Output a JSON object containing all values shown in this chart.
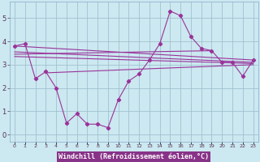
{
  "xlabel": "Windchill (Refroidissement éolien,°C)",
  "x": [
    0,
    1,
    2,
    3,
    4,
    5,
    6,
    7,
    8,
    9,
    10,
    11,
    12,
    13,
    14,
    15,
    16,
    17,
    18,
    19,
    20,
    21,
    22,
    23
  ],
  "line_main": [
    3.8,
    3.9,
    2.4,
    2.7,
    2.0,
    0.5,
    0.9,
    0.45,
    0.45,
    0.3,
    1.5,
    2.3,
    2.6,
    3.2,
    3.9,
    5.3,
    5.1,
    4.2,
    3.7,
    3.6,
    3.1,
    3.1,
    2.5,
    3.2
  ],
  "straight_lines": [
    {
      "x": [
        0,
        23
      ],
      "y": [
        3.8,
        3.2
      ]
    },
    {
      "x": [
        0,
        23
      ],
      "y": [
        3.55,
        3.1
      ]
    },
    {
      "x": [
        0,
        23
      ],
      "y": [
        3.35,
        3.05
      ]
    },
    {
      "x": [
        3,
        23
      ],
      "y": [
        2.65,
        3.0
      ]
    },
    {
      "x": [
        0,
        19
      ],
      "y": [
        3.45,
        3.6
      ]
    }
  ],
  "color": "#993399",
  "bg_color": "#cce8f0",
  "grid_color": "#99bbcc",
  "ylim": [
    -0.3,
    5.7
  ],
  "yticks": [
    0,
    1,
    2,
    3,
    4,
    5
  ],
  "xlim": [
    -0.5,
    23.5
  ],
  "xlabel_bg": "#883388",
  "xlabel_color": "#ffffff"
}
